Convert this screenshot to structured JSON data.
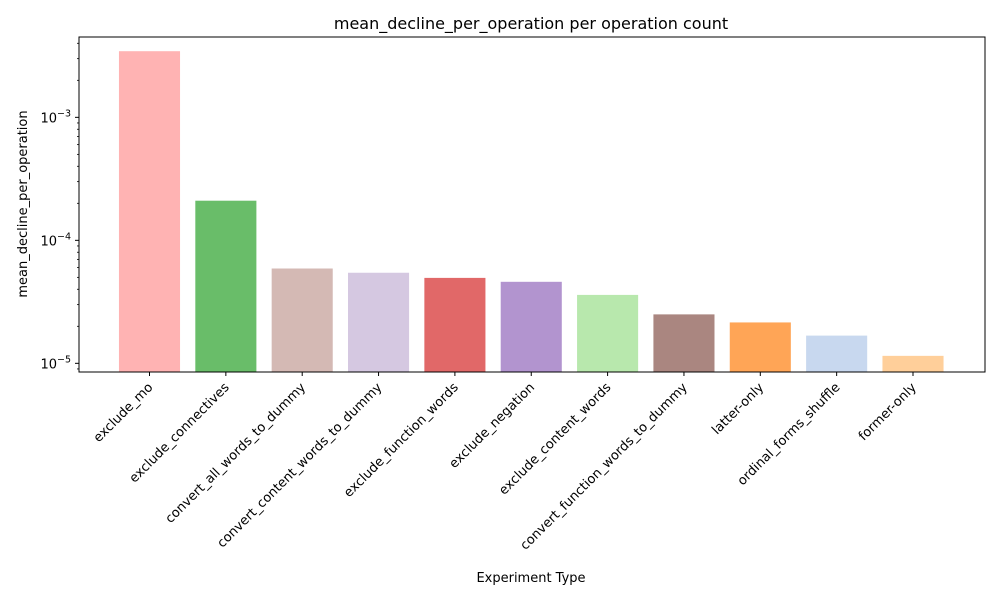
{
  "chart_data": {
    "type": "bar",
    "title": "mean_decline_per_operation per operation count",
    "xlabel": "Experiment Type",
    "ylabel": "mean_decline_per_operation",
    "y_scale": "log",
    "ylim": [
      8.5e-06,
      0.0045
    ],
    "y_ticks": [
      {
        "value": 1e-05,
        "base": "10",
        "exp": "−5"
      },
      {
        "value": 0.0001,
        "base": "10",
        "exp": "−4"
      },
      {
        "value": 0.001,
        "base": "10",
        "exp": "−3"
      }
    ],
    "categories": [
      "exclude_mo",
      "exclude_connectives",
      "convert_all_words_to_dummy",
      "convert_content_words_to_dummy",
      "exclude_function_words",
      "exclude_negation",
      "exclude_content_words",
      "convert_function_words_to_dummy",
      "latter-only",
      "ordinal_forms_shuffle",
      "former-only"
    ],
    "values": [
      0.00345,
      0.00021,
      5.9e-05,
      5.45e-05,
      4.95e-05,
      4.6e-05,
      3.6e-05,
      2.5e-05,
      2.15e-05,
      1.68e-05,
      1.15e-05
    ],
    "colors": [
      "#ffb3b3",
      "#69bd69",
      "#d4b9b4",
      "#d5c8e1",
      "#e16868",
      "#b294cf",
      "#b8e8ad",
      "#aa8680",
      "#ffa556",
      "#c8d8ef",
      "#ffcf9a"
    ],
    "grid": false,
    "legend": "none"
  }
}
